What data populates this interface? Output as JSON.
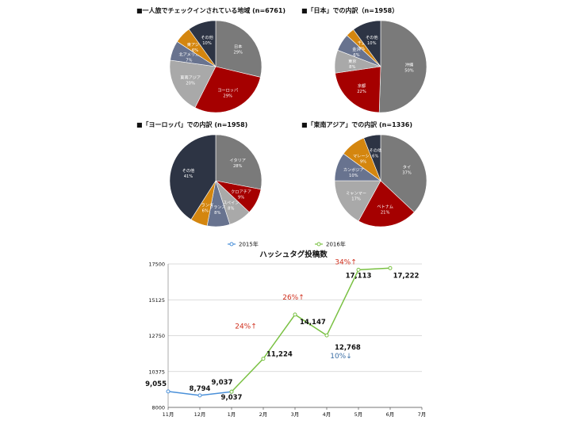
{
  "chart_data": [
    {
      "type": "pie",
      "title": "■一人旅でチェックインされている地域 (n=6761)",
      "slices": [
        {
          "label": "日本",
          "pct_label": "29%",
          "value": 29,
          "color": "#7a7a7a"
        },
        {
          "label": "ヨーロッパ",
          "pct_label": "29%",
          "value": 29,
          "color": "#a50000"
        },
        {
          "label": "東南アジア",
          "pct_label": "20%",
          "value": 20,
          "color": "#a9a9a9"
        },
        {
          "label": "北アメリカ",
          "pct_label": "7%",
          "value": 7,
          "color": "#68738f"
        },
        {
          "label": "東アジア",
          "pct_label": "6%",
          "value": 6,
          "color": "#d4860f"
        },
        {
          "label": "その他",
          "pct_label": "10%",
          "value": 10,
          "color": "#2d3444"
        }
      ]
    },
    {
      "type": "pie",
      "title": "■「日本」での内訳（n=1958）",
      "slices": [
        {
          "label": "沖縄",
          "pct_label": "50%",
          "value": 50,
          "color": "#7a7a7a"
        },
        {
          "label": "京都",
          "pct_label": "22%",
          "value": 22,
          "color": "#a50000"
        },
        {
          "label": "東京",
          "pct_label": "8%",
          "value": 8,
          "color": "#a9a9a9"
        },
        {
          "label": "金沢",
          "pct_label": "6%",
          "value": 6,
          "color": "#68738f"
        },
        {
          "label": "千葉",
          "pct_label": "3%",
          "value": 3,
          "color": "#d4860f"
        },
        {
          "label": "その他",
          "pct_label": "10%",
          "value": 10,
          "color": "#2d3444"
        }
      ]
    },
    {
      "type": "pie",
      "title": "■「ヨーロッパ」での内訳 (n=1958)",
      "slices": [
        {
          "label": "イタリア",
          "pct_label": "28%",
          "value": 28,
          "color": "#7a7a7a"
        },
        {
          "label": "クロアチア",
          "pct_label": "9%",
          "value": 9,
          "color": "#a50000"
        },
        {
          "label": "スペイン",
          "pct_label": "8%",
          "value": 8,
          "color": "#a9a9a9"
        },
        {
          "label": "フランス",
          "pct_label": "8%",
          "value": 8,
          "color": "#68738f"
        },
        {
          "label": "オランダ",
          "pct_label": "6%",
          "value": 6,
          "color": "#d4860f"
        },
        {
          "label": "その他",
          "pct_label": "41%",
          "value": 41,
          "color": "#2d3444"
        }
      ]
    },
    {
      "type": "pie",
      "title": "■「東南アジア」での内訳 (n=1336)",
      "slices": [
        {
          "label": "タイ",
          "pct_label": "37%",
          "value": 37,
          "color": "#7a7a7a"
        },
        {
          "label": "ベトナム",
          "pct_label": "21%",
          "value": 21,
          "color": "#a50000"
        },
        {
          "label": "ミャンマー",
          "pct_label": "17%",
          "value": 17,
          "color": "#a9a9a9"
        },
        {
          "label": "カンボジア",
          "pct_label": "10%",
          "value": 10,
          "color": "#68738f"
        },
        {
          "label": "マレーシア",
          "pct_label": "9%",
          "value": 9,
          "color": "#d4860f"
        },
        {
          "label": "その他",
          "pct_label": "6%",
          "value": 6,
          "color": "#2d3444"
        }
      ]
    },
    {
      "type": "line",
      "title": "ハッシュタグ投稿数",
      "categories": [
        "11月",
        "12月",
        "1月",
        "2月",
        "3月",
        "4月",
        "5月",
        "6月",
        "7月"
      ],
      "ylim": [
        8000,
        17500
      ],
      "yticks": [
        "8000",
        "10375",
        "12750",
        "15125",
        "17500"
      ],
      "series": [
        {
          "name": "2015年",
          "color": "#4a90d9",
          "points": [
            {
              "x": 0,
              "y": 9055,
              "label": "9,055"
            },
            {
              "x": 1,
              "y": 8794,
              "label": "8,794"
            },
            {
              "x": 2,
              "y": 9037,
              "label": "9,037"
            }
          ]
        },
        {
          "name": "2016年",
          "color": "#7ac143",
          "points": [
            {
              "x": 2,
              "y": 9037,
              "label": "9,037"
            },
            {
              "x": 3,
              "y": 11224,
              "label": "11,224"
            },
            {
              "x": 4,
              "y": 14147,
              "label": "14,147"
            },
            {
              "x": 5,
              "y": 12768,
              "label": "12,768"
            },
            {
              "x": 6,
              "y": 17113,
              "label": "17,113"
            },
            {
              "x": 7,
              "y": 17222,
              "label": "17,222"
            }
          ]
        }
      ],
      "annotations": [
        {
          "text": "24%↑",
          "color": "#d0301e",
          "at": 3
        },
        {
          "text": "26%↑",
          "color": "#d0301e",
          "at": 4
        },
        {
          "text": "10%↓",
          "color": "#3a6ea5",
          "at": 5
        },
        {
          "text": "34%↑",
          "color": "#d0301e",
          "at": 6
        }
      ]
    }
  ]
}
